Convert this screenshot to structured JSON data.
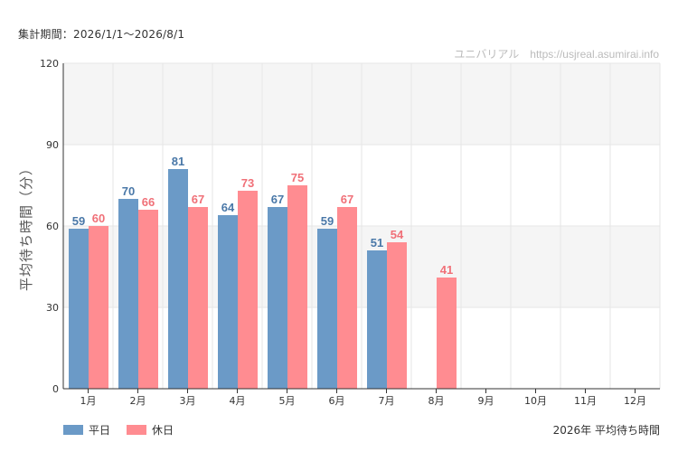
{
  "header": {
    "period": "集計期間：2026/1/1～2026/8/1"
  },
  "caption": "2026年 平均待ち時間",
  "colors": {
    "weekday": "#6b9ac7",
    "holiday": "#ff8c91",
    "weekday_label": "#4a78a8",
    "holiday_label": "#f07078",
    "band": "#f5f5f5",
    "grid": "#e6e6e6",
    "axis": "#333333"
  },
  "chart_data": {
    "type": "bar",
    "credit": "ユニバリアル　https://usjreal.asumirai.info",
    "ylabel": "平均待ち時間（分）",
    "ylim": [
      0,
      120
    ],
    "yticks": [
      0,
      30,
      60,
      90,
      120
    ],
    "grid": true,
    "legend_position": "bottom-left",
    "categories": [
      "1月",
      "2月",
      "3月",
      "4月",
      "5月",
      "6月",
      "7月",
      "8月",
      "9月",
      "10月",
      "11月",
      "12月"
    ],
    "series": [
      {
        "name": "平日",
        "values": [
          59,
          70,
          81,
          64,
          67,
          59,
          51,
          null,
          null,
          null,
          null,
          null
        ]
      },
      {
        "name": "休日",
        "values": [
          60,
          66,
          67,
          73,
          75,
          67,
          54,
          41,
          null,
          null,
          null,
          null
        ]
      }
    ]
  }
}
